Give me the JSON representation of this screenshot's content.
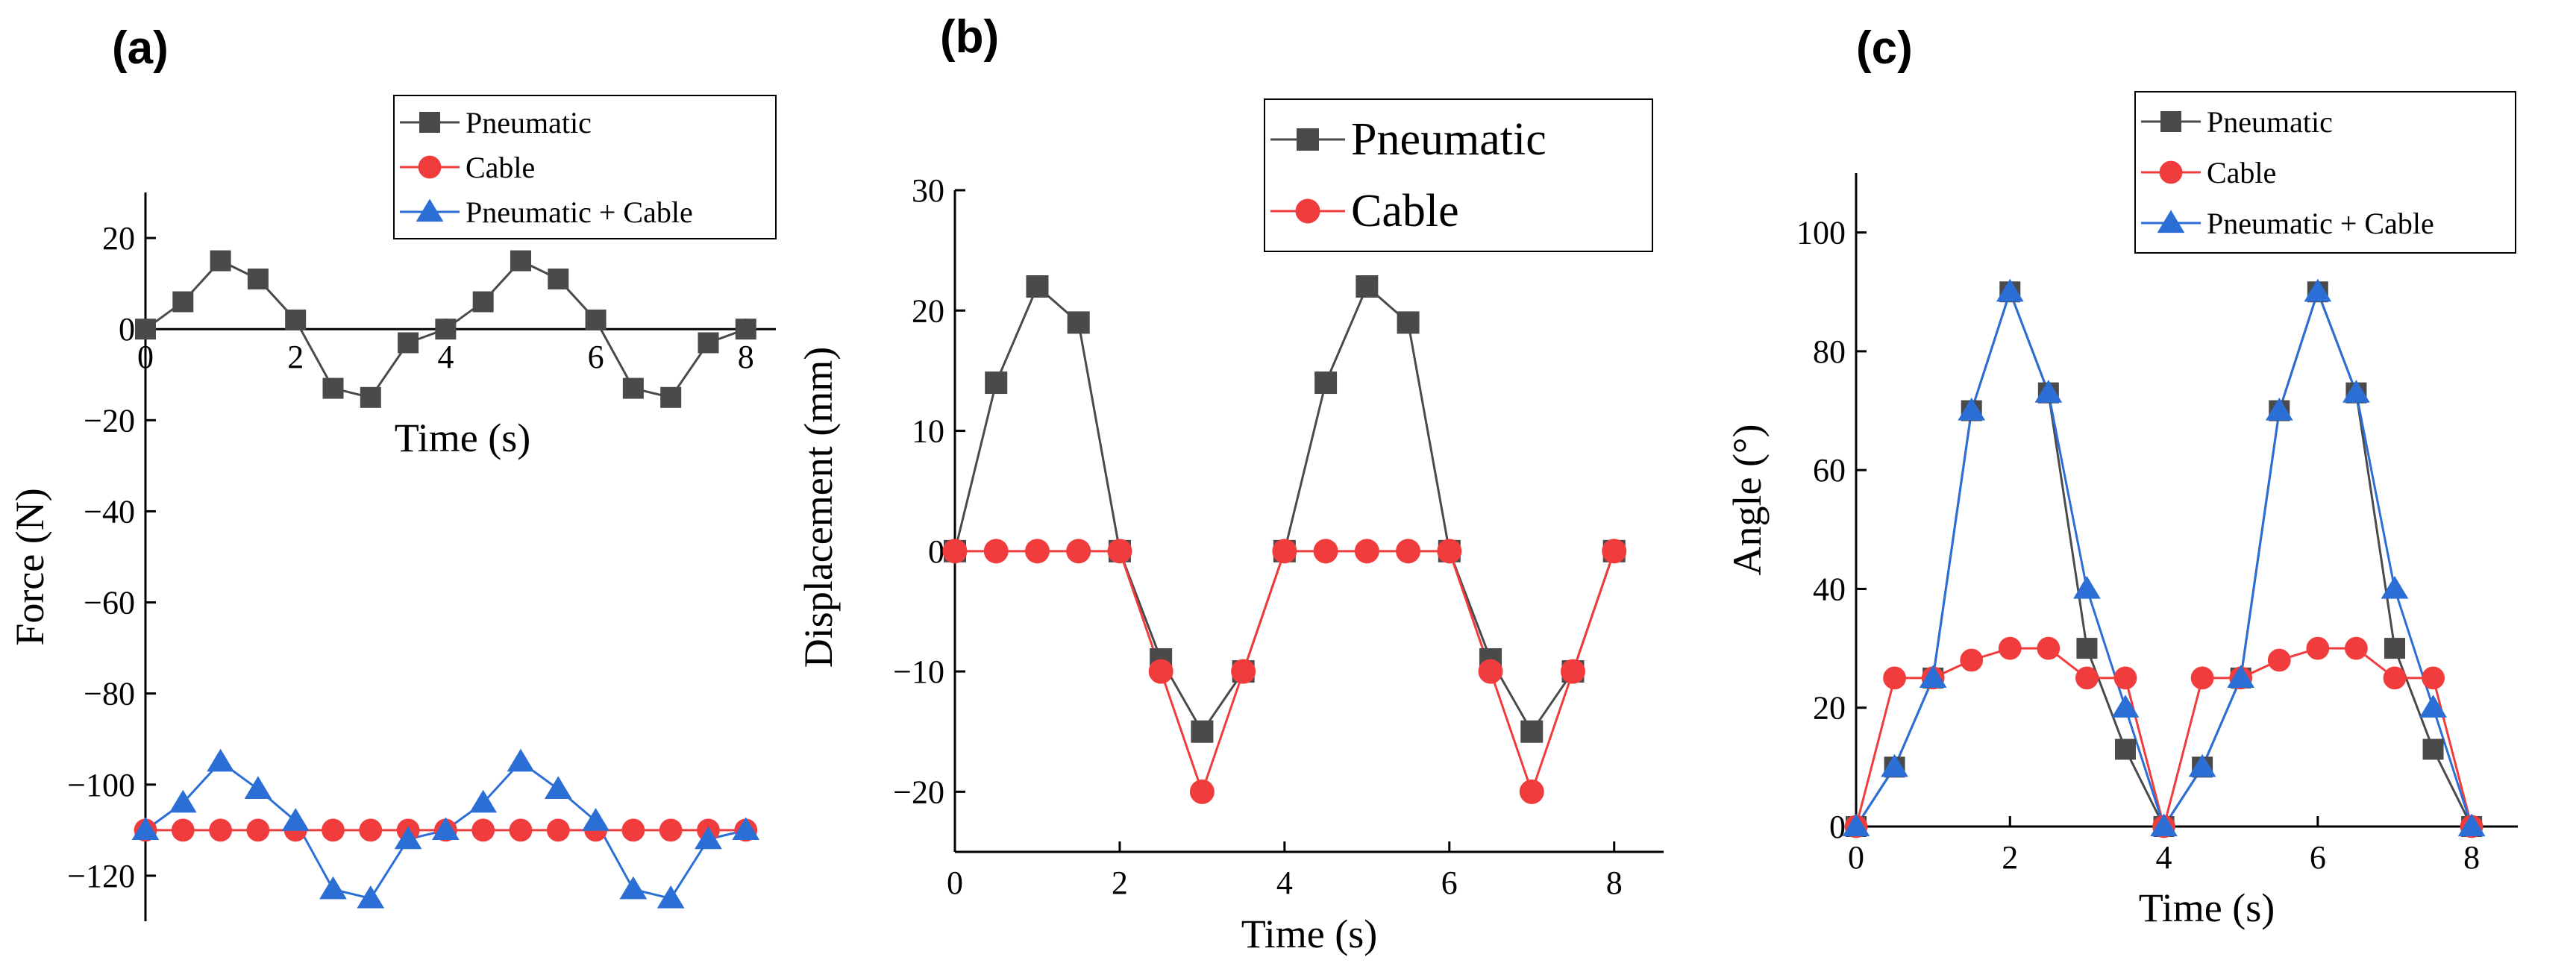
{
  "chart_data": [
    {
      "type": "line",
      "panel": "(a)",
      "xlabel": "Time (s)",
      "ylabel": "Force (N)",
      "xlim": [
        0,
        8.4
      ],
      "ylim": [
        -130,
        30
      ],
      "xticks": [
        0,
        2,
        4,
        6,
        8
      ],
      "xtick_labels": [
        "0",
        "2",
        "4",
        "6",
        "8"
      ],
      "yticks": [
        20,
        0,
        -20,
        -40,
        -60,
        -80,
        -100,
        -120
      ],
      "ytick_labels": [
        "20",
        "0",
        "−20",
        "−40",
        "−60",
        "−80",
        "−100",
        "−120"
      ],
      "legend_position": "top-right",
      "series": [
        {
          "name": "Pneumatic",
          "color": "#4a4a4a",
          "marker": "square",
          "x": [
            0,
            0.5,
            1,
            1.5,
            2,
            2.5,
            3,
            3.5,
            4,
            4.5,
            5,
            5.5,
            6,
            6.5,
            7,
            7.5,
            8
          ],
          "y": [
            0,
            6,
            15,
            11,
            2,
            -13,
            -15,
            -3,
            0,
            6,
            15,
            11,
            2,
            -13,
            -15,
            -3,
            0
          ]
        },
        {
          "name": "Cable",
          "color": "#f03c3c",
          "marker": "circle",
          "x": [
            0,
            0.5,
            1,
            1.5,
            2,
            2.5,
            3,
            3.5,
            4,
            4.5,
            5,
            5.5,
            6,
            6.5,
            7,
            7.5,
            8
          ],
          "y": [
            -110,
            -110,
            -110,
            -110,
            -110,
            -110,
            -110,
            -110,
            -110,
            -110,
            -110,
            -110,
            -110,
            -110,
            -110,
            -110,
            -110
          ]
        },
        {
          "name": "Pneumatic + Cable",
          "color": "#2b6fd6",
          "marker": "triangle",
          "x": [
            0,
            0.5,
            1,
            1.5,
            2,
            2.5,
            3,
            3.5,
            4,
            4.5,
            5,
            5.5,
            6,
            6.5,
            7,
            7.5,
            8
          ],
          "y": [
            -110,
            -104,
            -95,
            -101,
            -108,
            -123,
            -125,
            -112,
            -110,
            -104,
            -95,
            -101,
            -108,
            -123,
            -125,
            -112,
            -110
          ]
        }
      ]
    },
    {
      "type": "line",
      "panel": "(b)",
      "xlabel": "Time (s)",
      "ylabel": "Displacement (mm)",
      "xlim": [
        0,
        8.6
      ],
      "ylim": [
        -25,
        30
      ],
      "xticks": [
        0,
        2,
        4,
        6,
        8
      ],
      "xtick_labels": [
        "0",
        "2",
        "4",
        "6",
        "8"
      ],
      "yticks": [
        30,
        20,
        10,
        0,
        -10,
        -20
      ],
      "ytick_labels": [
        "30",
        "20",
        "10",
        "0",
        "−10",
        "−20"
      ],
      "legend_position": "top-right",
      "series": [
        {
          "name": "Pneumatic",
          "color": "#4a4a4a",
          "marker": "square",
          "x": [
            0,
            0.5,
            1,
            1.5,
            2,
            2.5,
            3,
            3.5,
            4,
            4.5,
            5,
            5.5,
            6,
            6.5,
            7,
            7.5,
            8
          ],
          "y": [
            0,
            14,
            22,
            19,
            0,
            -9,
            -15,
            -10,
            0,
            14,
            22,
            19,
            0,
            -9,
            -15,
            -10,
            0
          ]
        },
        {
          "name": "Cable",
          "color": "#f03c3c",
          "marker": "circle",
          "x": [
            0,
            0.5,
            1,
            1.5,
            2,
            2.5,
            3,
            3.5,
            4,
            4.5,
            5,
            5.5,
            6,
            6.5,
            7,
            7.5,
            8
          ],
          "y": [
            0,
            0,
            0,
            0,
            0,
            -10,
            -20,
            -10,
            0,
            0,
            0,
            0,
            0,
            -10,
            -20,
            -10,
            0
          ]
        }
      ]
    },
    {
      "type": "line",
      "panel": "(c)",
      "xlabel": "Time (s)",
      "ylabel": "Angle (°)",
      "xlim": [
        0,
        8.6
      ],
      "ylim": [
        0,
        110
      ],
      "xticks": [
        0,
        2,
        4,
        6,
        8
      ],
      "xtick_labels": [
        "0",
        "2",
        "4",
        "6",
        "8"
      ],
      "yticks": [
        0,
        20,
        40,
        60,
        80,
        100
      ],
      "ytick_labels": [
        "0",
        "20",
        "40",
        "60",
        "80",
        "100"
      ],
      "legend_position": "top-right",
      "series": [
        {
          "name": "Pneumatic",
          "color": "#4a4a4a",
          "marker": "square",
          "x": [
            0,
            0.5,
            1,
            1.5,
            2,
            2.5,
            3,
            3.5,
            4,
            4.5,
            5,
            5.5,
            6,
            6.5,
            7,
            7.5,
            8
          ],
          "y": [
            0,
            10,
            25,
            70,
            90,
            73,
            30,
            13,
            0,
            10,
            25,
            70,
            90,
            73,
            30,
            13,
            0
          ]
        },
        {
          "name": "Cable",
          "color": "#f03c3c",
          "marker": "circle",
          "x": [
            0,
            0.5,
            1,
            1.5,
            2,
            2.5,
            3,
            3.5,
            4,
            4.5,
            5,
            5.5,
            6,
            6.5,
            7,
            7.5,
            8
          ],
          "y": [
            0,
            25,
            25,
            28,
            30,
            30,
            25,
            25,
            0,
            25,
            25,
            28,
            30,
            30,
            25,
            25,
            0
          ]
        },
        {
          "name": "Pneumatic + Cable",
          "color": "#2b6fd6",
          "marker": "triangle",
          "x": [
            0,
            0.5,
            1,
            1.5,
            2,
            2.5,
            3,
            3.5,
            4,
            4.5,
            5,
            5.5,
            6,
            6.5,
            7,
            7.5,
            8
          ],
          "y": [
            0,
            10,
            25,
            70,
            90,
            73,
            40,
            20,
            0,
            10,
            25,
            70,
            90,
            73,
            40,
            20,
            0
          ]
        }
      ]
    }
  ]
}
